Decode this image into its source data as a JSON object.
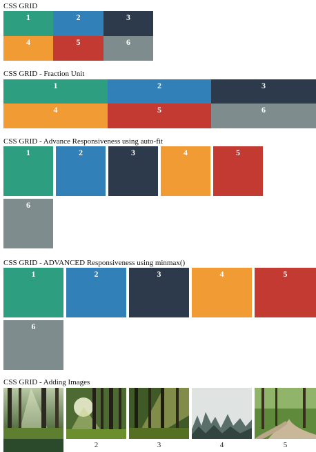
{
  "sections": [
    {
      "title": "CSS GRID",
      "cells": [
        "1",
        "2",
        "3",
        "4",
        "5",
        "6"
      ]
    },
    {
      "title": "CSS GRID - Fraction Unit",
      "cells": [
        "1",
        "2",
        "3",
        "4",
        "5",
        "6"
      ]
    },
    {
      "title": "CSS GRID - Advance Responsiveness using auto-fit",
      "cells": [
        "1",
        "2",
        "3",
        "4",
        "5",
        "6"
      ]
    },
    {
      "title": "CSS GRID - ADVANCED Responsiveness using minmax()",
      "cells": [
        "1",
        "2",
        "3",
        "4",
        "5",
        "6"
      ]
    },
    {
      "title": "CSS GRID - Adding Images",
      "captions": [
        "",
        "2",
        "3",
        "4",
        "5"
      ]
    }
  ],
  "colors": {
    "teal": "#2e9e80",
    "blue": "#3280b8",
    "navy": "#2c3a4b",
    "orange": "#f09b33",
    "red": "#c23a32",
    "gray": "#7f8c8d"
  }
}
